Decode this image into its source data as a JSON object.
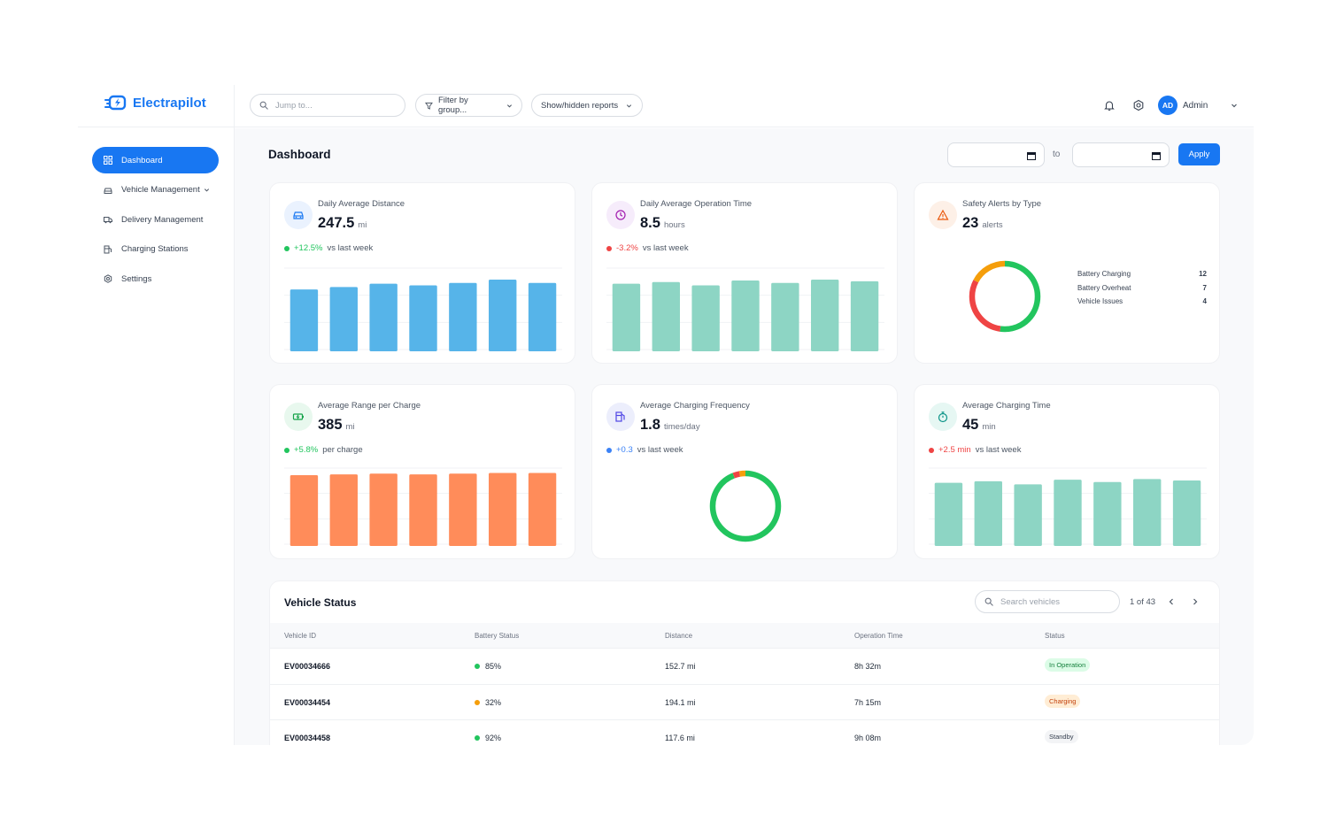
{
  "app": {
    "name": "Electrapilot"
  },
  "header": {
    "search_placeholder": "Jump to...",
    "filter_label": "Filter by group...",
    "reports_label": "Show/hidden reports",
    "avatar_initials": "AD",
    "user_name": "Admin"
  },
  "sidebar": {
    "items": [
      {
        "label": "Dashboard",
        "icon": "grid-icon",
        "active": true
      },
      {
        "label": "Vehicle Management",
        "icon": "car-icon",
        "active": false
      },
      {
        "label": "Delivery Management",
        "icon": "truck-icon",
        "active": false
      },
      {
        "label": "Charging Stations",
        "icon": "fuel-pump-icon",
        "active": false
      },
      {
        "label": "Settings",
        "icon": "gear-icon",
        "active": false
      }
    ]
  },
  "page": {
    "title": "Dashboard",
    "to_label": "to",
    "apply_label": "Apply"
  },
  "colors": {
    "accent": "#1877f2",
    "blue_bar": "#56b4e9",
    "teal_bar": "#8dd5c4",
    "orange_bar": "#ff8c5a",
    "green": "#22c55e",
    "red": "#ef4444",
    "orange": "#f59e0b"
  },
  "cards": [
    {
      "title": "Daily Average Distance",
      "value": "247.5",
      "unit": "mi",
      "delta": "+12.5%",
      "delta_text": "vs last week",
      "delta_color": "#22c55e",
      "icon": "car-icon"
    },
    {
      "title": "Daily Average Operation Time",
      "value": "8.5",
      "unit": "hours",
      "delta": "-3.2%",
      "delta_text": "vs last week",
      "delta_color": "#ef4444",
      "icon": "clock-icon"
    },
    {
      "title": "Safety Alerts by Type",
      "value": "23",
      "unit": "alerts",
      "icon": "warning-icon",
      "legend": [
        {
          "label": "Battery Charging",
          "count": "12"
        },
        {
          "label": "Battery Overheat",
          "count": "7"
        },
        {
          "label": "Vehicle Issues",
          "count": "4"
        }
      ]
    },
    {
      "title": "Average Range per Charge",
      "value": "385",
      "unit": "mi",
      "delta": "+5.8%",
      "delta_text": "per charge",
      "delta_color": "#22c55e",
      "icon": "battery-charging-icon"
    },
    {
      "title": "Average Charging Frequency",
      "value": "1.8",
      "unit": "times/day",
      "delta": "+0.3",
      "delta_text": "vs last week",
      "delta_color": "#3b82f6",
      "icon": "fuel-pump-icon"
    },
    {
      "title": "Average Charging Time",
      "value": "45",
      "unit": "min",
      "delta": "+2.5 min",
      "delta_text": "vs last week",
      "delta_color": "#ef4444",
      "icon": "stopwatch-icon"
    }
  ],
  "chart_data": [
    {
      "type": "bar",
      "values": [
        76,
        79,
        83,
        81,
        84,
        88,
        84
      ],
      "ylim": [
        0,
        100
      ],
      "color": "#56b4e9"
    },
    {
      "type": "bar",
      "values": [
        83,
        85,
        81,
        87,
        84,
        88,
        86
      ],
      "ylim": [
        0,
        100
      ],
      "color": "#8dd5c4"
    },
    {
      "type": "pie",
      "values": [
        12,
        7,
        4
      ],
      "labels": [
        "Battery Charging",
        "Battery Overheat",
        "Vehicle Issues"
      ],
      "colors": [
        "#22c55e",
        "#ef4444",
        "#f59e0b"
      ]
    },
    {
      "type": "bar",
      "values": [
        93,
        94,
        95,
        94,
        95,
        96,
        96
      ],
      "ylim": [
        0,
        100
      ],
      "color": "#ff8c5a"
    },
    {
      "type": "pie",
      "values": [
        94,
        3,
        3
      ],
      "colors": [
        "#22c55e",
        "#ef4444",
        "#f59e0b"
      ]
    },
    {
      "type": "bar",
      "values": [
        83,
        85,
        81,
        87,
        84,
        88,
        86
      ],
      "ylim": [
        0,
        100
      ],
      "color": "#8dd5c4"
    }
  ],
  "table": {
    "title": "Vehicle Status",
    "search_placeholder": "Search vehicles",
    "pager": "1 of 43",
    "columns": [
      "Vehicle ID",
      "Battery Status",
      "Distance",
      "Operation Time",
      "Status"
    ],
    "rows": [
      {
        "id": "EV00034666",
        "battery": "85%",
        "battery_color": "#22c55e",
        "distance": "152.7 mi",
        "time": "8h 32m",
        "status": "In Operation",
        "status_bg": "#dcfce7",
        "status_fg": "#15803d"
      },
      {
        "id": "EV00034454",
        "battery": "32%",
        "battery_color": "#f59e0b",
        "distance": "194.1 mi",
        "time": "7h 15m",
        "status": "Charging",
        "status_bg": "#ffedd5",
        "status_fg": "#c2410c"
      },
      {
        "id": "EV00034458",
        "battery": "92%",
        "battery_color": "#22c55e",
        "distance": "117.6 mi",
        "time": "9h 08m",
        "status": "Standby",
        "status_bg": "#f3f4f6",
        "status_fg": "#374151"
      }
    ]
  }
}
